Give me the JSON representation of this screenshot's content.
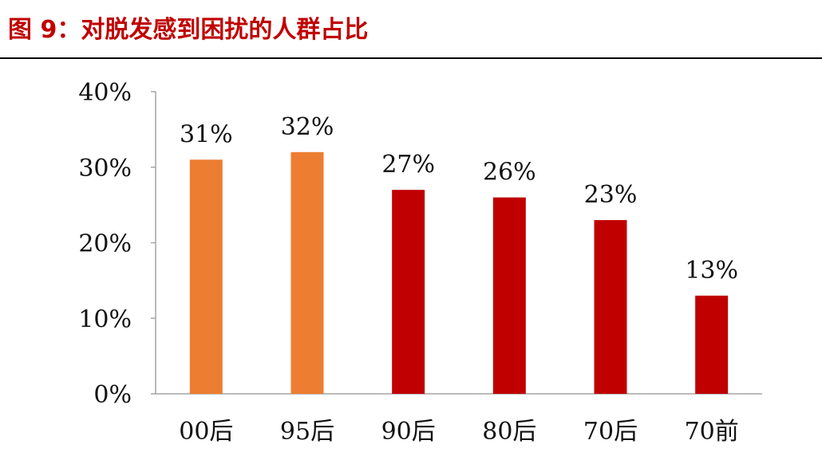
{
  "header": {
    "title": "图 9：对脱发感到困扰的人群占比"
  },
  "colors": {
    "title": "#c00000",
    "rule": "#000000",
    "axis": "#a6a6a6",
    "orange": "#ed7d31",
    "red": "#c00000"
  },
  "chart_data": {
    "type": "bar",
    "title": "",
    "xlabel": "",
    "ylabel": "",
    "categories": [
      "00后",
      "95后",
      "90后",
      "80后",
      "70后",
      "70前"
    ],
    "values": [
      31,
      32,
      27,
      26,
      23,
      13
    ],
    "value_labels": [
      "31%",
      "32%",
      "27%",
      "26%",
      "23%",
      "13%"
    ],
    "bar_colors": [
      "#ed7d31",
      "#ed7d31",
      "#c00000",
      "#c00000",
      "#c00000",
      "#c00000"
    ],
    "ylim": [
      0,
      40
    ],
    "yticks": [
      0,
      10,
      20,
      30,
      40
    ],
    "ytick_labels": [
      "0%",
      "10%",
      "20%",
      "30%",
      "40%"
    ],
    "grid": false,
    "legend": "none"
  }
}
